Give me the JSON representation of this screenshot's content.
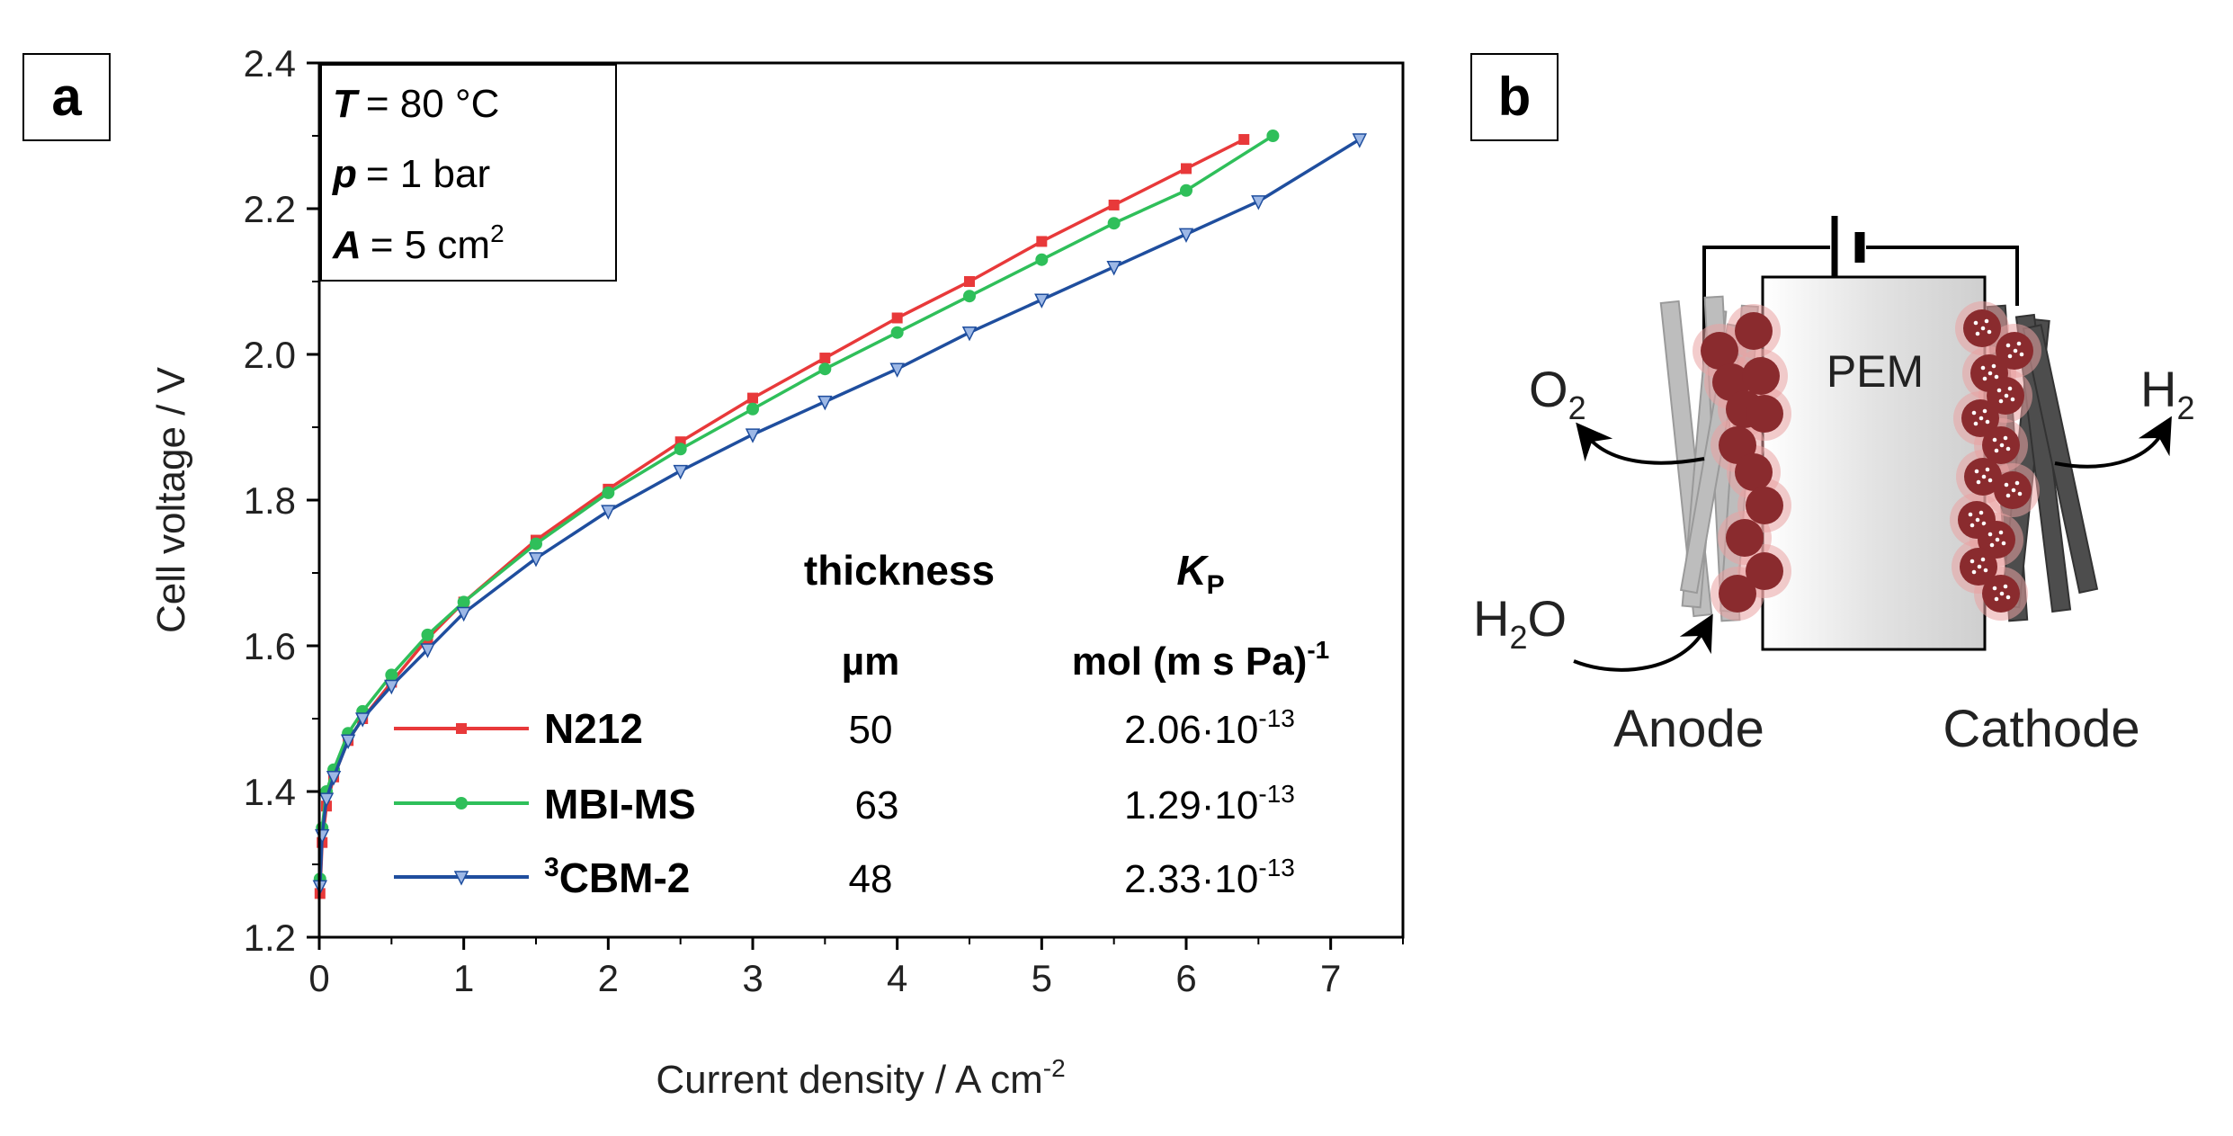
{
  "panels": {
    "a": {
      "label": "a"
    },
    "b": {
      "label": "b"
    }
  },
  "conditions": {
    "temperature": {
      "symbol": "T",
      "value": "= 80 °C"
    },
    "pressure": {
      "symbol": "p",
      "value": "= 1 bar"
    },
    "area": {
      "symbol": "A",
      "value": "=  5 cm",
      "value_sup": "2"
    }
  },
  "table": {
    "thickness_header": "thickness",
    "thickness_unit": "µm",
    "kp_header_main": "K",
    "kp_header_sub": "P",
    "kp_unit_main": "mol (m s Pa)",
    "kp_unit_sup": "-1",
    "rows": [
      {
        "name_sup": "",
        "name": "N212",
        "thickness": "50",
        "kp_base": "2.06·10",
        "kp_exp": "-13"
      },
      {
        "name_sup": "",
        "name": "MBI-MS",
        "thickness": "63",
        "kp_base": "1.29·10",
        "kp_exp": "-13"
      },
      {
        "name_sup": "3",
        "name": "CBM-2",
        "thickness": "48",
        "kp_base": "2.33·10",
        "kp_exp": "-13"
      }
    ]
  },
  "chart_data": {
    "type": "line",
    "xlabel_main": "Current density / A cm",
    "xlabel_sup": "-2",
    "ylabel": "Cell voltage / V",
    "xlim": [
      0,
      7.5
    ],
    "ylim": [
      1.2,
      2.4
    ],
    "xticks": [
      "0",
      "1",
      "2",
      "3",
      "4",
      "5",
      "6",
      "7"
    ],
    "yticks": [
      "1.2",
      "1.4",
      "1.6",
      "1.8",
      "2.0",
      "2.2",
      "2.4"
    ],
    "grid": false,
    "legend_position": "bottom-center",
    "series": [
      {
        "name": "N212",
        "color": "#e8393a",
        "marker": "square",
        "x": [
          0.005,
          0.02,
          0.05,
          0.1,
          0.2,
          0.3,
          0.5,
          0.75,
          1.0,
          1.5,
          2.0,
          2.5,
          3.0,
          3.5,
          4.0,
          4.5,
          5.0,
          5.5,
          6.0,
          6.4
        ],
        "y": [
          1.26,
          1.33,
          1.38,
          1.42,
          1.47,
          1.5,
          1.55,
          1.61,
          1.66,
          1.745,
          1.815,
          1.88,
          1.94,
          1.995,
          2.05,
          2.1,
          2.155,
          2.205,
          2.255,
          2.295
        ]
      },
      {
        "name": "MBI-MS",
        "color": "#2fbf5a",
        "marker": "circle",
        "x": [
          0.005,
          0.02,
          0.05,
          0.1,
          0.2,
          0.3,
          0.5,
          0.75,
          1.0,
          1.5,
          2.0,
          2.5,
          3.0,
          3.5,
          4.0,
          4.5,
          5.0,
          5.5,
          6.0,
          6.6
        ],
        "y": [
          1.28,
          1.35,
          1.4,
          1.43,
          1.48,
          1.51,
          1.56,
          1.615,
          1.66,
          1.74,
          1.81,
          1.87,
          1.925,
          1.98,
          2.03,
          2.08,
          2.13,
          2.18,
          2.225,
          2.3
        ]
      },
      {
        "name": "CBM-2",
        "color": "#1f4e9e",
        "marker": "triangle-down",
        "x": [
          0.005,
          0.02,
          0.05,
          0.1,
          0.2,
          0.3,
          0.5,
          0.75,
          1.0,
          1.5,
          2.0,
          2.5,
          3.0,
          3.5,
          4.0,
          4.5,
          5.0,
          5.5,
          6.0,
          6.5,
          7.2
        ],
        "y": [
          1.27,
          1.34,
          1.39,
          1.42,
          1.47,
          1.5,
          1.545,
          1.595,
          1.645,
          1.72,
          1.785,
          1.84,
          1.89,
          1.935,
          1.98,
          2.03,
          2.075,
          2.12,
          2.165,
          2.21,
          2.295
        ]
      }
    ]
  },
  "schematic": {
    "membrane_label": "PEM",
    "anode_label": "Anode",
    "cathode_label": "Cathode",
    "o2": {
      "main": "O",
      "sub": "2"
    },
    "h2": {
      "main": "H",
      "sub": "2"
    },
    "h2o": {
      "main1": "H",
      "sub": "2",
      "main2": "O"
    },
    "colors": {
      "gdl_anode": "#b9b9b9",
      "gdl_cathode": "#4d4d4d",
      "catalyst": "#8a2b2e",
      "catalyst_glow": "#e9a3a3",
      "membrane": "#e6e6e6"
    }
  }
}
